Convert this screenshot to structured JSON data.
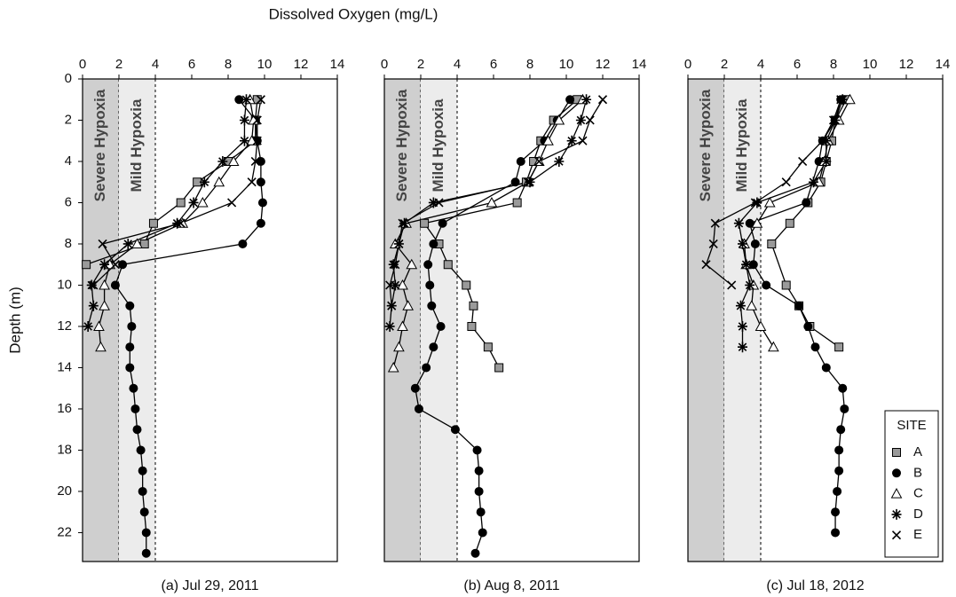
{
  "x_label": "Dissolved Oxygen (mg/L)",
  "y_label": "Depth (m)",
  "chart_data": [
    {
      "type": "scatter-line",
      "title": "(a) Jul 29, 2011",
      "xlim": [
        0,
        14
      ],
      "xticks": [
        0,
        2,
        4,
        6,
        8,
        10,
        12,
        14
      ],
      "ylim": [
        0,
        23.4
      ],
      "yticks": [
        0,
        2,
        4,
        6,
        8,
        10,
        12,
        14,
        16,
        18,
        20,
        22
      ],
      "y_inverted": true,
      "zones": [
        {
          "label": "Severe Hypoxia",
          "range": [
            0,
            2
          ],
          "color": "#cfcfcf"
        },
        {
          "label": "Mild Hypoxia",
          "range": [
            2,
            4
          ],
          "color": "#ececec"
        }
      ],
      "series": [
        {
          "marker": "square",
          "color": "#9a9a9a",
          "depth": [
            1,
            2,
            3,
            4,
            5,
            6,
            7,
            8,
            9
          ],
          "values": [
            9.6,
            9.5,
            9.5,
            8.0,
            6.3,
            5.4,
            3.9,
            3.4,
            0.2
          ]
        },
        {
          "marker": "circle",
          "color": "#000000",
          "depth": [
            1,
            2,
            3,
            4,
            5,
            6,
            7,
            8,
            9,
            10,
            11,
            12,
            13,
            14,
            15,
            16,
            17,
            18,
            19,
            20,
            21,
            22,
            23
          ],
          "values": [
            8.6,
            9.5,
            9.6,
            9.8,
            9.8,
            9.9,
            9.8,
            8.8,
            2.2,
            1.8,
            2.6,
            2.7,
            2.6,
            2.6,
            2.8,
            2.9,
            3.0,
            3.2,
            3.3,
            3.3,
            3.4,
            3.5,
            3.5
          ]
        },
        {
          "marker": "triangle",
          "color": "#ffffff",
          "depth": [
            1,
            2,
            3,
            4,
            5,
            6,
            7,
            8,
            9,
            10,
            11,
            12,
            13
          ],
          "values": [
            9.2,
            9.4,
            9.3,
            8.3,
            7.5,
            6.6,
            5.5,
            3.0,
            1.5,
            1.2,
            1.2,
            0.9,
            1.0
          ]
        },
        {
          "marker": "asterisk",
          "color": "#000000",
          "depth": [
            1,
            2,
            3,
            4,
            5,
            6,
            7,
            8,
            9,
            10,
            11,
            12
          ],
          "values": [
            9.0,
            8.9,
            8.9,
            7.7,
            6.7,
            6.1,
            5.2,
            2.5,
            1.2,
            0.5,
            0.6,
            0.3
          ]
        },
        {
          "marker": "cross",
          "color": "#000000",
          "depth": [
            1,
            2,
            3,
            4,
            5,
            6,
            7,
            8,
            9,
            10
          ],
          "values": [
            9.8,
            9.6,
            9.6,
            9.5,
            9.3,
            8.2,
            5.4,
            1.1,
            1.8,
            0.6
          ]
        }
      ]
    },
    {
      "type": "scatter-line",
      "title": "(b) Aug 8, 2011",
      "xlim": [
        0,
        14
      ],
      "xticks": [
        0,
        2,
        4,
        6,
        8,
        10,
        12,
        14
      ],
      "ylim": [
        0,
        23.4
      ],
      "y_inverted": true,
      "zones": [
        {
          "label": "Severe Hypoxia",
          "range": [
            0,
            2
          ],
          "color": "#cfcfcf"
        },
        {
          "label": "Mild Hypoxia",
          "range": [
            2,
            4
          ],
          "color": "#ececec"
        }
      ],
      "series": [
        {
          "marker": "square",
          "color": "#9a9a9a",
          "depth": [
            1,
            2,
            3,
            4,
            5,
            6,
            7,
            8,
            9,
            10,
            11,
            12,
            13,
            14
          ],
          "values": [
            10.6,
            9.3,
            8.6,
            8.2,
            7.8,
            7.3,
            2.2,
            3.0,
            3.5,
            4.5,
            4.9,
            4.8,
            5.7,
            6.3
          ]
        },
        {
          "marker": "circle",
          "color": "#000000",
          "depth": [
            1,
            2,
            3,
            4,
            5,
            7,
            8,
            9,
            10,
            11,
            12,
            13,
            14,
            15,
            16,
            17,
            18,
            19,
            20,
            21,
            22,
            23
          ],
          "values": [
            10.2,
            9.5,
            8.8,
            7.5,
            7.2,
            3.2,
            2.7,
            2.4,
            2.5,
            2.6,
            3.1,
            2.7,
            2.3,
            1.7,
            1.9,
            3.9,
            5.1,
            5.2,
            5.2,
            5.3,
            5.4,
            5.0
          ]
        },
        {
          "marker": "triangle",
          "color": "#ffffff",
          "depth": [
            1,
            2,
            3,
            4,
            5,
            6,
            7,
            8,
            9,
            10,
            11,
            12,
            13,
            14
          ],
          "values": [
            10.9,
            9.6,
            9.0,
            8.5,
            7.9,
            5.9,
            1.2,
            0.6,
            1.5,
            1.0,
            1.3,
            1.0,
            0.8,
            0.5
          ]
        },
        {
          "marker": "asterisk",
          "color": "#000000",
          "depth": [
            1,
            2,
            3,
            4,
            5,
            6,
            7,
            8,
            9,
            10,
            11,
            12
          ],
          "values": [
            11.1,
            10.8,
            10.3,
            9.6,
            8.0,
            2.7,
            1.1,
            0.8,
            0.5,
            0.6,
            0.4,
            0.3
          ]
        },
        {
          "marker": "cross",
          "color": "#000000",
          "depth": [
            1,
            2,
            3,
            4,
            5,
            6,
            7,
            8,
            9,
            10,
            11
          ],
          "values": [
            12.0,
            11.3,
            10.9,
            8.5,
            7.9,
            3.0,
            1.0,
            0.8,
            0.6,
            0.3,
            0.4
          ]
        }
      ]
    },
    {
      "type": "scatter-line",
      "title": "(c) Jul 18, 2012",
      "xlim": [
        0,
        14
      ],
      "xticks": [
        0,
        2,
        4,
        6,
        8,
        10,
        12,
        14
      ],
      "ylim": [
        0,
        23.4
      ],
      "y_inverted": true,
      "zones": [
        {
          "label": "Severe Hypoxia",
          "range": [
            0,
            2
          ],
          "color": "#cfcfcf"
        },
        {
          "label": "Mild Hypoxia",
          "range": [
            2,
            4
          ],
          "color": "#ececec"
        }
      ],
      "legend": {
        "title": "SITE",
        "position": "lower right"
      },
      "series": [
        {
          "name": "A",
          "marker": "square",
          "color": "#9a9a9a",
          "depth": [
            1,
            2,
            3,
            4,
            5,
            6,
            7,
            8,
            10,
            11,
            12,
            13
          ],
          "values": [
            8.7,
            8.1,
            7.9,
            7.6,
            7.3,
            6.6,
            5.6,
            4.6,
            5.4,
            6.1,
            6.7,
            8.3
          ]
        },
        {
          "name": "B",
          "marker": "circle",
          "color": "#000000",
          "depth": [
            1,
            2,
            3,
            4,
            6,
            7,
            8,
            9,
            10,
            11,
            12,
            13,
            14,
            15,
            16,
            17,
            18,
            19,
            20,
            21,
            22
          ],
          "values": [
            8.4,
            8.1,
            7.4,
            7.2,
            6.5,
            3.4,
            3.7,
            3.6,
            4.3,
            6.1,
            6.6,
            7.0,
            7.6,
            8.5,
            8.6,
            8.4,
            8.3,
            8.3,
            8.2,
            8.1,
            8.1
          ]
        },
        {
          "name": "C",
          "marker": "triangle",
          "color": "#ffffff",
          "depth": [
            1,
            2,
            3,
            4,
            5,
            6,
            7,
            8,
            9,
            10,
            11,
            12,
            13
          ],
          "values": [
            8.9,
            8.3,
            7.7,
            7.5,
            7.2,
            4.5,
            3.8,
            3.1,
            3.2,
            3.6,
            3.5,
            4.0,
            4.7
          ]
        },
        {
          "name": "D",
          "marker": "asterisk",
          "color": "#000000",
          "depth": [
            1,
            2,
            3,
            4,
            5,
            6,
            7,
            8,
            9,
            10,
            11,
            12,
            13
          ],
          "values": [
            8.5,
            8.1,
            7.6,
            7.6,
            6.9,
            3.8,
            2.8,
            3.0,
            3.2,
            3.4,
            2.9,
            3.0,
            3.0
          ]
        },
        {
          "name": "E",
          "marker": "cross",
          "color": "#000000",
          "depth": [
            1,
            2,
            3,
            4,
            5,
            6,
            7,
            8,
            9,
            10
          ],
          "values": [
            8.4,
            8.0,
            7.4,
            6.3,
            5.4,
            3.7,
            1.5,
            1.4,
            1.0,
            2.4
          ]
        }
      ]
    }
  ]
}
